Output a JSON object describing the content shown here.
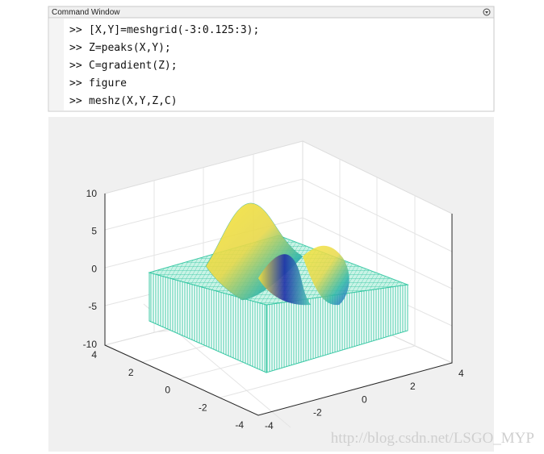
{
  "command_window": {
    "title": "Command Window",
    "prompt": ">>",
    "lines": [
      "[X,Y]=meshgrid(-3:0.125:3);",
      "Z=peaks(X,Y);",
      "C=gradient(Z);",
      "figure",
      "meshz(X,Y,Z,C)"
    ]
  },
  "figure": {
    "z_ticks": [
      "10",
      "5",
      "0",
      "-5",
      "-10"
    ],
    "y_ticks": [
      "4",
      "2",
      "0",
      "-2",
      "-4"
    ],
    "x_ticks": [
      "-4",
      "-2",
      "0",
      "2",
      "4"
    ]
  },
  "watermark": "http://blog.csdn.net/LSGO_MYP"
}
